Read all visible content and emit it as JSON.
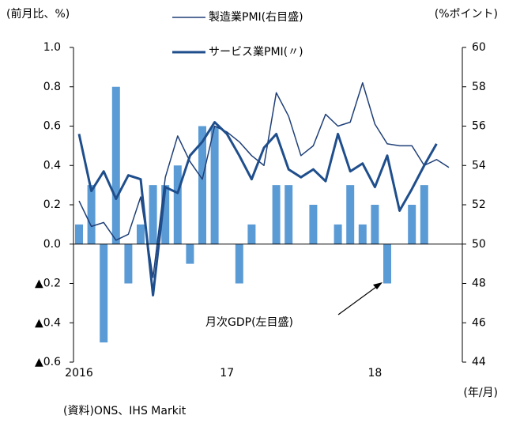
{
  "chart_data": {
    "type": "bar",
    "y_label": "(前月比、%)",
    "y2_label": "(%ポイント)",
    "x_label": "(年/月)",
    "source": "(資料)ONS、IHS Markit",
    "categories": [
      "2016",
      null,
      null,
      null,
      null,
      null,
      null,
      null,
      null,
      null,
      null,
      null,
      "17",
      null,
      null,
      null,
      null,
      null,
      null,
      null,
      null,
      null,
      null,
      null,
      "18",
      null,
      null,
      null,
      null,
      null,
      null
    ],
    "series": [
      {
        "name": "月次GDP(左目盛)",
        "type": "bar",
        "color": "#5b9bd5",
        "axis": "y",
        "values": [
          0.1,
          0.3,
          -0.5,
          0.8,
          -0.2,
          0.1,
          0.3,
          0.3,
          0.4,
          -0.1,
          0.6,
          0.6,
          0.0,
          -0.2,
          0.1,
          0.0,
          0.3,
          0.3,
          0.0,
          0.2,
          0.0,
          0.1,
          0.3,
          0.1,
          0.2,
          -0.2,
          0.0,
          0.2,
          0.3,
          null,
          null
        ]
      },
      {
        "name": "製造業PMI(右目盛)",
        "type": "line",
        "color": "#1f3f77",
        "width": 1.5,
        "axis": "y2",
        "values": [
          52.2,
          50.9,
          51.1,
          50.2,
          50.5,
          52.4,
          48.3,
          53.4,
          55.5,
          54.2,
          53.3,
          56.0,
          55.7,
          55.2,
          54.5,
          54.0,
          57.7,
          56.5,
          54.5,
          55.0,
          56.6,
          56.0,
          56.2,
          58.2,
          56.1,
          55.1,
          55.0,
          55.0,
          54.0,
          54.3,
          53.9
        ]
      },
      {
        "name": "サービス業PMI(〃)",
        "type": "line",
        "color": "#1f4e8c",
        "width": 3,
        "axis": "y2",
        "values": [
          55.6,
          52.7,
          53.7,
          52.3,
          53.5,
          53.3,
          47.4,
          52.9,
          52.6,
          54.5,
          55.2,
          56.2,
          55.6,
          54.5,
          53.3,
          54.9,
          55.6,
          53.8,
          53.4,
          53.8,
          53.2,
          55.6,
          53.7,
          54.1,
          52.9,
          54.5,
          51.7,
          52.8,
          54.0,
          55.1,
          null
        ]
      }
    ],
    "ylim": [
      -0.6,
      1.0
    ],
    "yticks": [
      {
        "value": 1.0,
        "label": "1.0"
      },
      {
        "value": 0.8,
        "label": "0.8"
      },
      {
        "value": 0.6,
        "label": "0.6"
      },
      {
        "value": 0.4,
        "label": "0.4"
      },
      {
        "value": 0.2,
        "label": "0.2"
      },
      {
        "value": 0,
        "label": "0.0"
      },
      {
        "value": -0.2,
        "label": "▲0.2"
      },
      {
        "value": -0.4,
        "label": "▲0.4"
      },
      {
        "value": -0.6,
        "label": "▲0.6"
      }
    ],
    "y2lim": [
      44,
      60
    ],
    "y2ticks": [
      60,
      58,
      56,
      54,
      52,
      50,
      48,
      46,
      44
    ]
  }
}
